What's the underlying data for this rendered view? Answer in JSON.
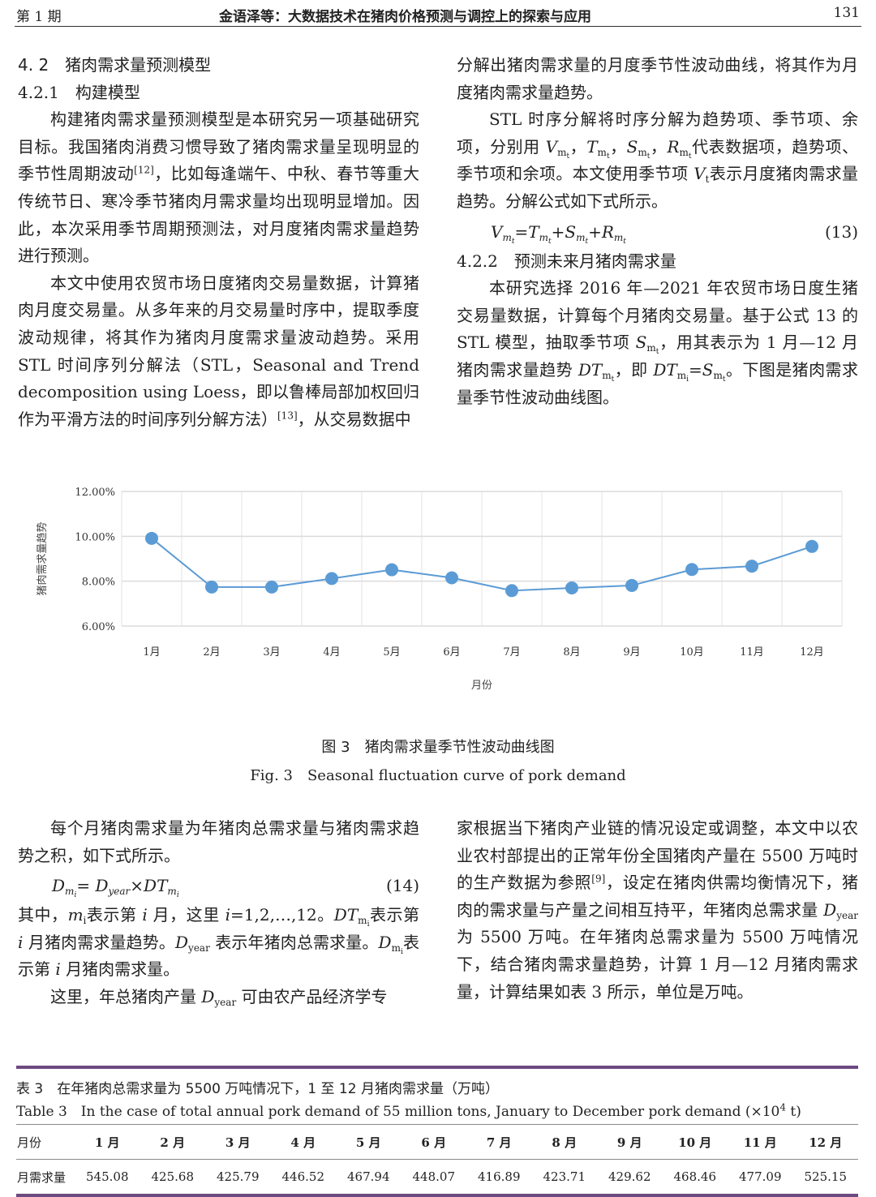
{
  "header": {
    "issue": "第 1 期",
    "title": "金语泽等：大数据技术在猪肉价格预测与调控上的探索与应用",
    "page": "131"
  },
  "top_left": [
    {
      "cls": "h1",
      "seg": [
        "4. 2　猪肉需求量预测模型"
      ]
    },
    {
      "cls": "h2",
      "seg": [
        "4.2.1　构建模型"
      ]
    },
    {
      "cls": "p",
      "seg": [
        "构建猪肉需求量预测模型是本研究另一项基础研究目标。我国猪肉消费习惯导致了猪肉需求量呈现明显的季节性周期波动",
        {
          "sup": "[12]"
        },
        "，比如每逢端午、中秋、春节等重大传统节日、寒冷季节猪肉月需求量均出现明显增加。因此，本次采用季节周期预测法，对月度猪肉需求量趋势进行预测。"
      ]
    },
    {
      "cls": "p",
      "seg": [
        "本文中使用农贸市场日度猪肉交易量数据，计算猪肉月度交易量。从多年来的月交易量时序中，提取季度波动规律，将其作为猪肉月度需求量波动趋势。采用 STL 时间序列分解法（STL，Seasonal and Trend decomposition using Loess，即以鲁棒局部加权回归作为平滑方法的时间序列分解方法）",
        {
          "sup": "[13]"
        },
        "，从交易数据中"
      ]
    }
  ],
  "top_right": [
    {
      "cls": "ni",
      "seg": [
        "分解出猪肉需求量的月度季节性波动曲线，将其作为月度猪肉需求量趋势。"
      ]
    },
    {
      "cls": "p",
      "seg": [
        "STL 时序分解将时序分解为趋势项、季节项、余项，分别用 ",
        {
          "v": "V",
          "s": "m",
          "ss": "t"
        },
        "，",
        {
          "v": "T",
          "s": "m",
          "ss": "t"
        },
        "，",
        {
          "v": "S",
          "s": "m",
          "ss": "t"
        },
        "，",
        {
          "v": "R",
          "s": "m",
          "ss": "t"
        },
        "代表数据项，趋势项、季节项和余项。本文使用季节项 ",
        {
          "v": "V",
          "s": "t"
        },
        "表示月度猪肉需求量趋势。分解公式如下式所示。"
      ]
    },
    {
      "cls": "formula",
      "seg": [
        {
          "v": "V",
          "s": "m",
          "ss": "t"
        },
        "=",
        {
          "v": "T",
          "s": "m",
          "ss": "t"
        },
        "+",
        {
          "v": "S",
          "s": "m",
          "ss": "t"
        },
        "+",
        {
          "v": "R",
          "s": "m",
          "ss": "t"
        }
      ],
      "num": "(13)"
    },
    {
      "cls": "h2",
      "seg": [
        "4.2.2　预测未来月猪肉需求量"
      ]
    },
    {
      "cls": "p",
      "seg": [
        "本研究选择 2016 年—2021 年农贸市场日度生猪交易量数据，计算每个月猪肉交易量。基于公式 13 的 STL 模型，抽取季节项 ",
        {
          "v": "S",
          "s": "m",
          "ss": "t"
        },
        "，用其表示为 1 月—12 月猪肉需求量趋势 ",
        {
          "v": "DT",
          "s": "m",
          "ss": "t"
        },
        "，即 ",
        {
          "v": "DT",
          "s": "m",
          "ss": "i"
        },
        "=",
        {
          "v": "S",
          "s": "m",
          "ss": "t"
        },
        "。下图是猪肉需求量季节性波动曲线图。"
      ]
    }
  ],
  "bottom_left": [
    {
      "cls": "p",
      "seg": [
        "每个月猪肉需求量为年猪肉总需求量与猪肉需求趋势之积，如下式所示。"
      ]
    },
    {
      "cls": "formula",
      "seg": [
        {
          "v": "D",
          "s": "m",
          "ss": "i"
        },
        "= ",
        {
          "v": "D",
          "s": "year"
        },
        "×",
        {
          "v": "DT",
          "s": "m",
          "ss": "i"
        }
      ],
      "num": "(14)"
    },
    {
      "cls": "ni",
      "seg": [
        "其中，",
        {
          "v": "m",
          "s": "i"
        },
        "表示第 ",
        {
          "v": "i"
        },
        " 月，这里 ",
        {
          "v": "i"
        },
        "=1,2,…,12。",
        {
          "v": "DT",
          "s": "m",
          "ss": "i"
        },
        "表示第 ",
        {
          "v": "i"
        },
        " 月猪肉需求量趋势。",
        {
          "v": "D",
          "s": "year"
        },
        " 表示年猪肉总需求量。",
        {
          "v": "D",
          "s": "m",
          "ss": "i"
        },
        "表示第 ",
        {
          "v": "i"
        },
        " 月猪肉需求量。"
      ]
    },
    {
      "cls": "p",
      "seg": [
        "这里，年总猪肉产量 ",
        {
          "v": "D",
          "s": "year"
        },
        " 可由农产品经济学专"
      ]
    }
  ],
  "bottom_right": [
    {
      "cls": "ni",
      "seg": [
        "家根据当下猪肉产业链的情况设定或调整，本文中以农业农村部提出的正常年份全国猪肉产量在 5500 万吨时的生产数据为参照",
        {
          "sup": "[9]"
        },
        "，设定在猪肉供需均衡情况下，猪肉的需求量与产量之间相互持平，年猪肉总需求量 ",
        {
          "v": "D",
          "s": "year"
        },
        " 为 5500 万吨。在年猪肉总需求量为 5500 万吨情况下，结合猪肉需求量趋势，计算 1 月—12 月猪肉需求量，计算结果如表 3 所示，单位是万吨。"
      ]
    }
  ],
  "chart_data": {
    "type": "line",
    "categories": [
      "1月",
      "2月",
      "3月",
      "4月",
      "5月",
      "6月",
      "7月",
      "8月",
      "9月",
      "10月",
      "11月",
      "12月"
    ],
    "values": [
      9.91,
      7.74,
      7.74,
      8.12,
      8.51,
      8.15,
      7.58,
      7.7,
      7.81,
      8.52,
      8.67,
      9.55
    ],
    "xlabel": "月份",
    "ylabel": "猪肉需求量趋势",
    "ylim": [
      6,
      12
    ],
    "yticks": [
      "6.00%",
      "8.00%",
      "10.00%",
      "12.00%"
    ],
    "grid": true,
    "color": "#5b9bd5"
  },
  "figure": {
    "caption_cn": "图 3　猪肉需求量季节性波动曲线图",
    "caption_en": "Fig. 3　Seasonal fluctuation curve of pork demand"
  },
  "table": {
    "title_cn": "表 3　在年猪肉总需求量为 5500 万吨情况下，1 至 12 月猪肉需求量（万吨）",
    "title_en": "Table 3　In the case of total annual pork demand of 55 million tons, January to December pork demand (×10",
    "title_en_sup": "4",
    "title_en_end": " t)",
    "header": [
      "月份",
      "1 月",
      "2 月",
      "3 月",
      "4 月",
      "5 月",
      "6 月",
      "7 月",
      "8 月",
      "9 月",
      "10 月",
      "11 月",
      "12 月"
    ],
    "row": [
      "月需求量",
      "545.08",
      "425.68",
      "425.79",
      "446.52",
      "467.94",
      "448.07",
      "416.89",
      "423.71",
      "429.62",
      "468.46",
      "477.09",
      "525.15"
    ],
    "accent": "#6d4a80"
  }
}
